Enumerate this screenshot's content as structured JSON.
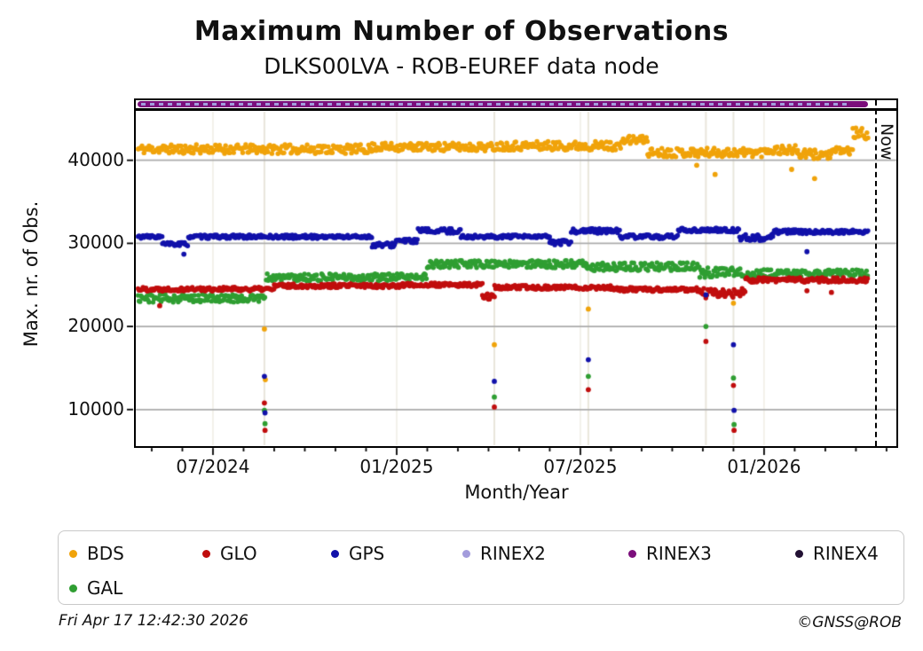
{
  "title": "Maximum Number of Observations",
  "subtitle": "DLKS00LVA - ROB-EUREF data node",
  "now_label": "Now",
  "footer": {
    "timestamp": "Fri Apr 17 12:42:30 2026",
    "credit": "©GNSS@ROB"
  },
  "y_axis": {
    "label": "Max. nr. of Obs.",
    "ticks": [
      {
        "v": 10000,
        "label": "10000"
      },
      {
        "v": 20000,
        "label": "20000"
      },
      {
        "v": 30000,
        "label": "30000"
      },
      {
        "v": 40000,
        "label": "40000"
      }
    ]
  },
  "x_axis": {
    "label": "Month/Year",
    "t_unit": "months_since_2024_07_01",
    "major_ticks": [
      {
        "t": 0,
        "label": "07/2024"
      },
      {
        "t": 6,
        "label": "01/2025"
      },
      {
        "t": 12,
        "label": "07/2025"
      },
      {
        "t": 18,
        "label": "01/2026"
      }
    ],
    "minor_tick_every_month": true,
    "range_t": [
      -2.55,
      22.35
    ]
  },
  "legend": [
    {
      "name": "BDS",
      "color": "#F0A30A"
    },
    {
      "name": "GLO",
      "color": "#C00D0D"
    },
    {
      "name": "GPS",
      "color": "#1111AA"
    },
    {
      "name": "RINEX2",
      "color": "#A39CDC"
    },
    {
      "name": "RINEX3",
      "color": "#7B0E7B"
    },
    {
      "name": "RINEX4",
      "color": "#221133"
    },
    {
      "name": "GAL",
      "color": "#2F9E32"
    }
  ],
  "chart_data": {
    "type": "scatter",
    "title": "Maximum Number of Observations",
    "subtitle": "DLKS00LVA - ROB-EUREF data node",
    "xlabel": "Month/Year",
    "ylabel": "Max. nr. of Obs.",
    "ylim": [
      5600,
      46000
    ],
    "grid": "horizontal-major",
    "legend_position": "below",
    "now_marker_t": 21.65,
    "sampling": "daily points, t in months since 2024-07-01",
    "segment_format": "[t_start, t_end, mean_value, jitter_amplitude]",
    "outlier_format": "[t, value]",
    "series": [
      {
        "name": "BDS",
        "color": "#F0A30A",
        "seed": 11,
        "segments": [
          [
            -2.45,
            5.2,
            41350,
            550
          ],
          [
            5.2,
            9.3,
            41600,
            500
          ],
          [
            9.3,
            13.4,
            41750,
            550
          ],
          [
            13.4,
            14.2,
            42450,
            500
          ],
          [
            14.2,
            18.0,
            40950,
            550
          ],
          [
            18.0,
            19.1,
            41250,
            550
          ],
          [
            19.1,
            20.3,
            40700,
            600
          ],
          [
            20.3,
            20.9,
            41150,
            450
          ],
          [
            20.9,
            21.4,
            43200,
            700
          ]
        ],
        "outliers": [
          [
            1.68,
            19700
          ],
          [
            1.71,
            13600
          ],
          [
            9.19,
            17800
          ],
          [
            12.26,
            22100
          ],
          [
            17.0,
            22800
          ],
          [
            15.8,
            39400
          ],
          [
            16.4,
            38300
          ],
          [
            18.9,
            38900
          ],
          [
            19.65,
            37800
          ]
        ]
      },
      {
        "name": "GAL",
        "color": "#2F9E32",
        "seed": 44,
        "segments": [
          [
            -2.45,
            1.7,
            23400,
            500
          ],
          [
            1.74,
            7.0,
            25900,
            450
          ],
          [
            7.0,
            12.2,
            27500,
            450
          ],
          [
            12.2,
            15.9,
            27200,
            500
          ],
          [
            15.9,
            17.4,
            26500,
            600
          ],
          [
            17.4,
            21.4,
            26400,
            450
          ]
        ],
        "outliers": [
          [
            1.68,
            9900
          ],
          [
            1.7,
            8300
          ],
          [
            9.19,
            11500
          ],
          [
            12.26,
            14000
          ],
          [
            16.1,
            20000
          ],
          [
            17.0,
            13800
          ],
          [
            17.02,
            8200
          ]
        ]
      },
      {
        "name": "GLO",
        "color": "#C00D0D",
        "seed": 22,
        "segments": [
          [
            -2.45,
            2.0,
            24500,
            250
          ],
          [
            2.0,
            6.1,
            24900,
            250
          ],
          [
            6.1,
            8.8,
            25000,
            250
          ],
          [
            8.8,
            9.2,
            23650,
            400
          ],
          [
            9.2,
            13.0,
            24700,
            250
          ],
          [
            13.0,
            15.9,
            24450,
            250
          ],
          [
            15.9,
            17.4,
            24000,
            600
          ],
          [
            17.4,
            21.4,
            25600,
            300
          ]
        ],
        "outliers": [
          [
            -1.74,
            22500
          ],
          [
            1.68,
            10800
          ],
          [
            1.7,
            7500
          ],
          [
            9.19,
            10300
          ],
          [
            12.26,
            12400
          ],
          [
            16.1,
            18200
          ],
          [
            17.0,
            12900
          ],
          [
            17.02,
            7500
          ],
          [
            19.4,
            24300
          ],
          [
            20.2,
            24100
          ]
        ]
      },
      {
        "name": "GPS",
        "color": "#1111AA",
        "seed": 33,
        "segments": [
          [
            -2.45,
            -1.65,
            30800,
            200
          ],
          [
            -1.65,
            -0.8,
            29900,
            250
          ],
          [
            -0.8,
            5.2,
            30800,
            220
          ],
          [
            5.2,
            5.95,
            29800,
            300
          ],
          [
            5.95,
            6.7,
            30300,
            250
          ],
          [
            6.7,
            8.1,
            31500,
            300
          ],
          [
            8.1,
            11.0,
            30800,
            220
          ],
          [
            11.0,
            11.7,
            30100,
            300
          ],
          [
            11.7,
            13.3,
            31500,
            300
          ],
          [
            13.3,
            15.2,
            30800,
            250
          ],
          [
            15.2,
            17.2,
            31600,
            250
          ],
          [
            17.2,
            18.3,
            30700,
            400
          ],
          [
            18.3,
            21.4,
            31400,
            250
          ]
        ],
        "outliers": [
          [
            -0.95,
            28700
          ],
          [
            1.68,
            14000
          ],
          [
            1.7,
            9600
          ],
          [
            9.19,
            13400
          ],
          [
            12.26,
            16000
          ],
          [
            16.1,
            23800
          ],
          [
            17.0,
            17800
          ],
          [
            17.02,
            9900
          ],
          [
            19.4,
            29000
          ]
        ]
      }
    ],
    "rinex_bars": [
      {
        "name": "RINEX3",
        "color": "#7B0E7B",
        "t0": -2.46,
        "t1": 21.4,
        "value": 46600,
        "style": "solid"
      },
      {
        "name": "RINEX2",
        "color": "#A39CDC",
        "t0": -2.42,
        "t1": 20.75,
        "value": 46600,
        "style": "dashed-overlay"
      }
    ],
    "rinex4_visible_data": "legend entry only, no plotted points",
    "event_lines_t": [
      1.68,
      9.19,
      12.26,
      16.1,
      17.0
    ]
  }
}
